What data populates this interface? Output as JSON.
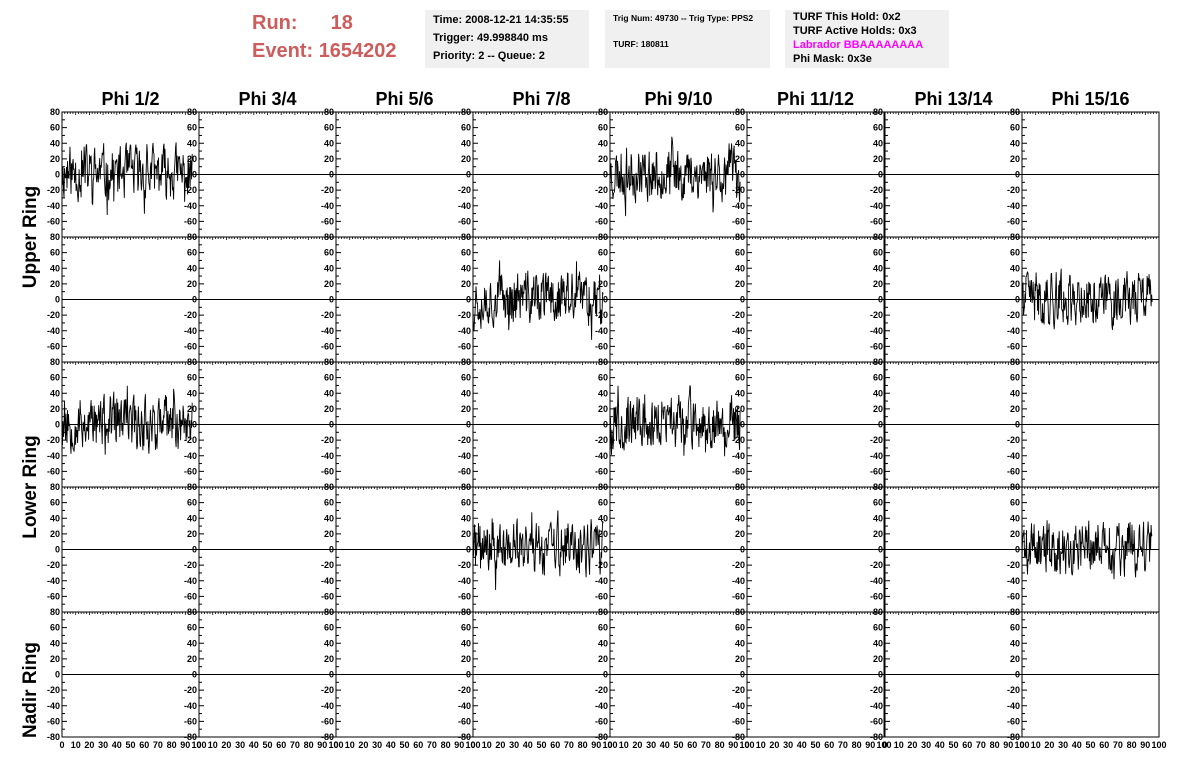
{
  "header": {
    "run_label": "Run:",
    "run_value": "18",
    "event_label": "Event:",
    "event_value": "1654202",
    "time": "Time: 2008-12-21 14:35:55",
    "trigger": "Trigger: 49.998840 ms",
    "priority": "Priority: 2 -- Queue: 2",
    "trig_num": "Trig Num: 49730 -- Trig Type: PPS2",
    "turf": "TURF: 180811",
    "turf_this_hold": "TURF This Hold: 0x2",
    "turf_active_holds": "TURF Active Holds: 0x3",
    "labrador": "Labrador BBAAAAAAAA",
    "phi_mask": "Phi Mask: 0x3e",
    "labrador_color": "#ff00ff",
    "run_color": "#cd5c5c"
  },
  "chart_data": {
    "type": "line",
    "title": "",
    "column_labels": [
      "Phi 1/2",
      "Phi 3/4",
      "Phi 5/6",
      "Phi 7/8",
      "Phi 9/10",
      "Phi 11/12",
      "Phi 13/14",
      "Phi 15/16"
    ],
    "ring_labels": [
      "Upper Ring",
      "Lower Ring",
      "Nadir Ring"
    ],
    "xlim": [
      0,
      100
    ],
    "ylim": [
      -80,
      80
    ],
    "x_ticks": [
      0,
      10,
      20,
      30,
      40,
      50,
      60,
      70,
      80,
      90,
      100
    ],
    "y_ticks": [
      80,
      60,
      40,
      20,
      0,
      -20,
      -40,
      -60,
      -80
    ],
    "rows": 5,
    "cols": 8,
    "waveform": {
      "x_start": 0,
      "x_end": 95,
      "samples": 260,
      "amplitude_approx": 40
    },
    "active_panels": [
      {
        "row": 0,
        "col": 0,
        "seed": 11
      },
      {
        "row": 0,
        "col": 4,
        "seed": 23
      },
      {
        "row": 1,
        "col": 3,
        "seed": 37
      },
      {
        "row": 1,
        "col": 7,
        "seed": 41
      },
      {
        "row": 2,
        "col": 0,
        "seed": 53
      },
      {
        "row": 2,
        "col": 4,
        "seed": 67
      },
      {
        "row": 3,
        "col": 3,
        "seed": 71
      },
      {
        "row": 3,
        "col": 7,
        "seed": 89
      }
    ]
  }
}
